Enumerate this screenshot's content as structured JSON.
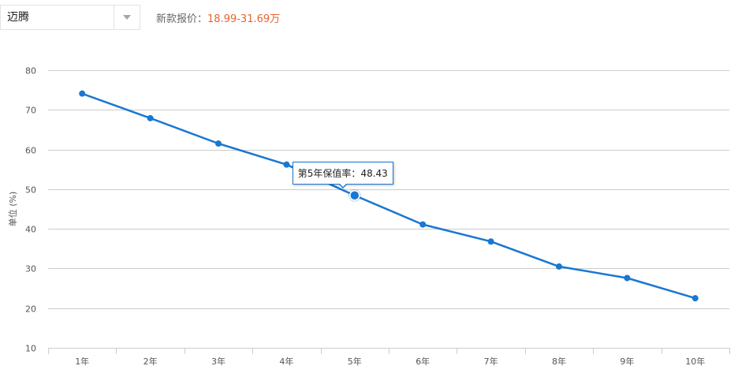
{
  "selector": {
    "value": "迈腾",
    "icon": "chevron-down-icon"
  },
  "price": {
    "label": "新款报价：",
    "value": "18.99-31.69万"
  },
  "colors": {
    "line": "#1a77d2",
    "grid": "#cccccc",
    "axis_text": "#555555",
    "price": "#e8632b"
  },
  "tooltip": {
    "label": "第5年保值率：",
    "value": "48.43"
  },
  "chart_data": {
    "type": "line",
    "categories": [
      "1年",
      "2年",
      "3年",
      "4年",
      "5年",
      "6年",
      "7年",
      "8年",
      "9年",
      "10年"
    ],
    "values": [
      74.1,
      67.9,
      61.5,
      56.2,
      48.43,
      41.1,
      36.8,
      30.5,
      27.6,
      22.5
    ],
    "ylabel": "单位 (%)",
    "ylim": [
      10,
      80
    ],
    "yticks": [
      10,
      20,
      30,
      40,
      50,
      60,
      70,
      80
    ],
    "highlighted_index": 4,
    "grid": true,
    "legend": "none"
  }
}
